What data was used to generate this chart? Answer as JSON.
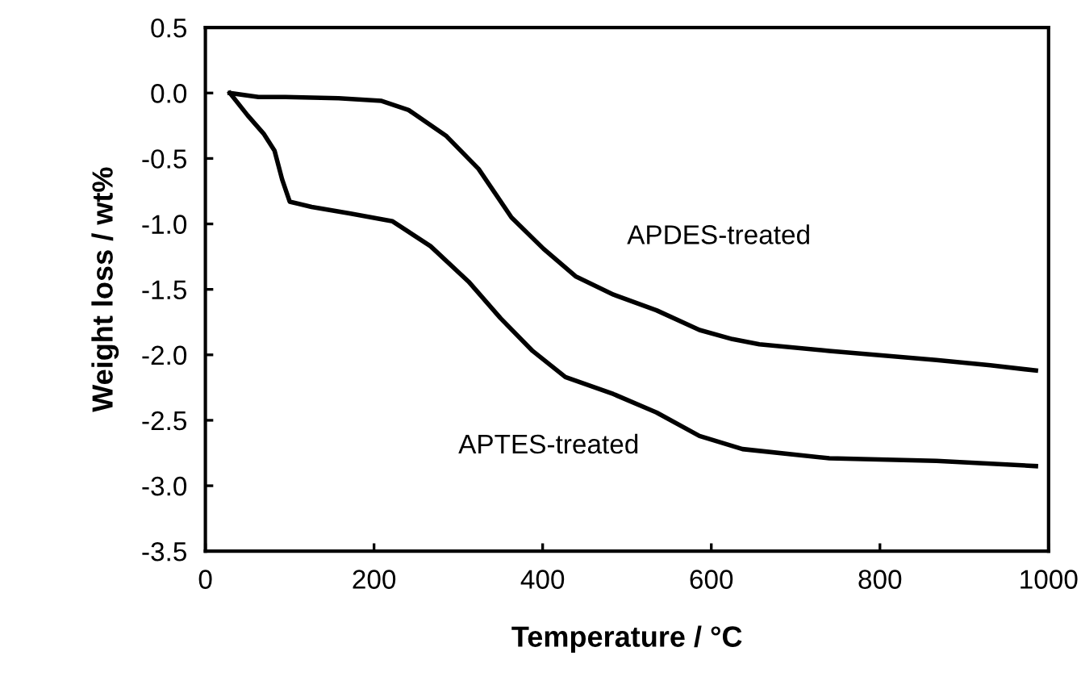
{
  "chart_data": {
    "type": "line",
    "xlabel": "Temperature / °C",
    "ylabel": "Weight loss / wt%",
    "xlim": [
      0,
      1000
    ],
    "xticks": [
      0,
      200,
      400,
      600,
      800,
      1000
    ],
    "ylim": [
      -3.5,
      0.5
    ],
    "yticks": [
      {
        "value": 0.5,
        "label": "0.5"
      },
      {
        "value": 0,
        "label": "0.0"
      },
      {
        "value": -0.5,
        "label": "-0.5"
      },
      {
        "value": -1,
        "label": "-1.0"
      },
      {
        "value": -1.5,
        "label": "-1.5"
      },
      {
        "value": -2,
        "label": "-2.0"
      },
      {
        "value": -2.5,
        "label": "-2.5"
      },
      {
        "value": -3,
        "label": "-3.0"
      },
      {
        "value": -3.5,
        "label": "-3.5"
      }
    ],
    "grid": false,
    "legend": false,
    "marker": "none",
    "line_style": "solid",
    "series": [
      {
        "name": "APDES-treated",
        "color": "#000000",
        "x": [
          29,
          63,
          95,
          158,
          209,
          241,
          286,
          324,
          363,
          401,
          439,
          484,
          535,
          586,
          625,
          657,
          740,
          867,
          931,
          985
        ],
        "values": [
          0,
          -0.03,
          -0.03,
          -0.04,
          -0.06,
          -0.13,
          -0.33,
          -0.58,
          -0.95,
          -1.19,
          -1.4,
          -1.54,
          -1.66,
          -1.81,
          -1.88,
          -1.92,
          -1.97,
          -2.04,
          -2.08,
          -2.12
        ]
      },
      {
        "name": "APTES-treated",
        "color": "#000000",
        "x": [
          29,
          50,
          69,
          82,
          91,
          100,
          126,
          171,
          222,
          267,
          312,
          350,
          388,
          427,
          484,
          535,
          586,
          637,
          740,
          867,
          985
        ],
        "values": [
          0,
          -0.17,
          -0.31,
          -0.44,
          -0.66,
          -0.83,
          -0.87,
          -0.92,
          -0.98,
          -1.17,
          -1.44,
          -1.72,
          -1.97,
          -2.17,
          -2.3,
          -2.44,
          -2.62,
          -2.72,
          -2.79,
          -2.81,
          -2.85
        ]
      }
    ]
  }
}
